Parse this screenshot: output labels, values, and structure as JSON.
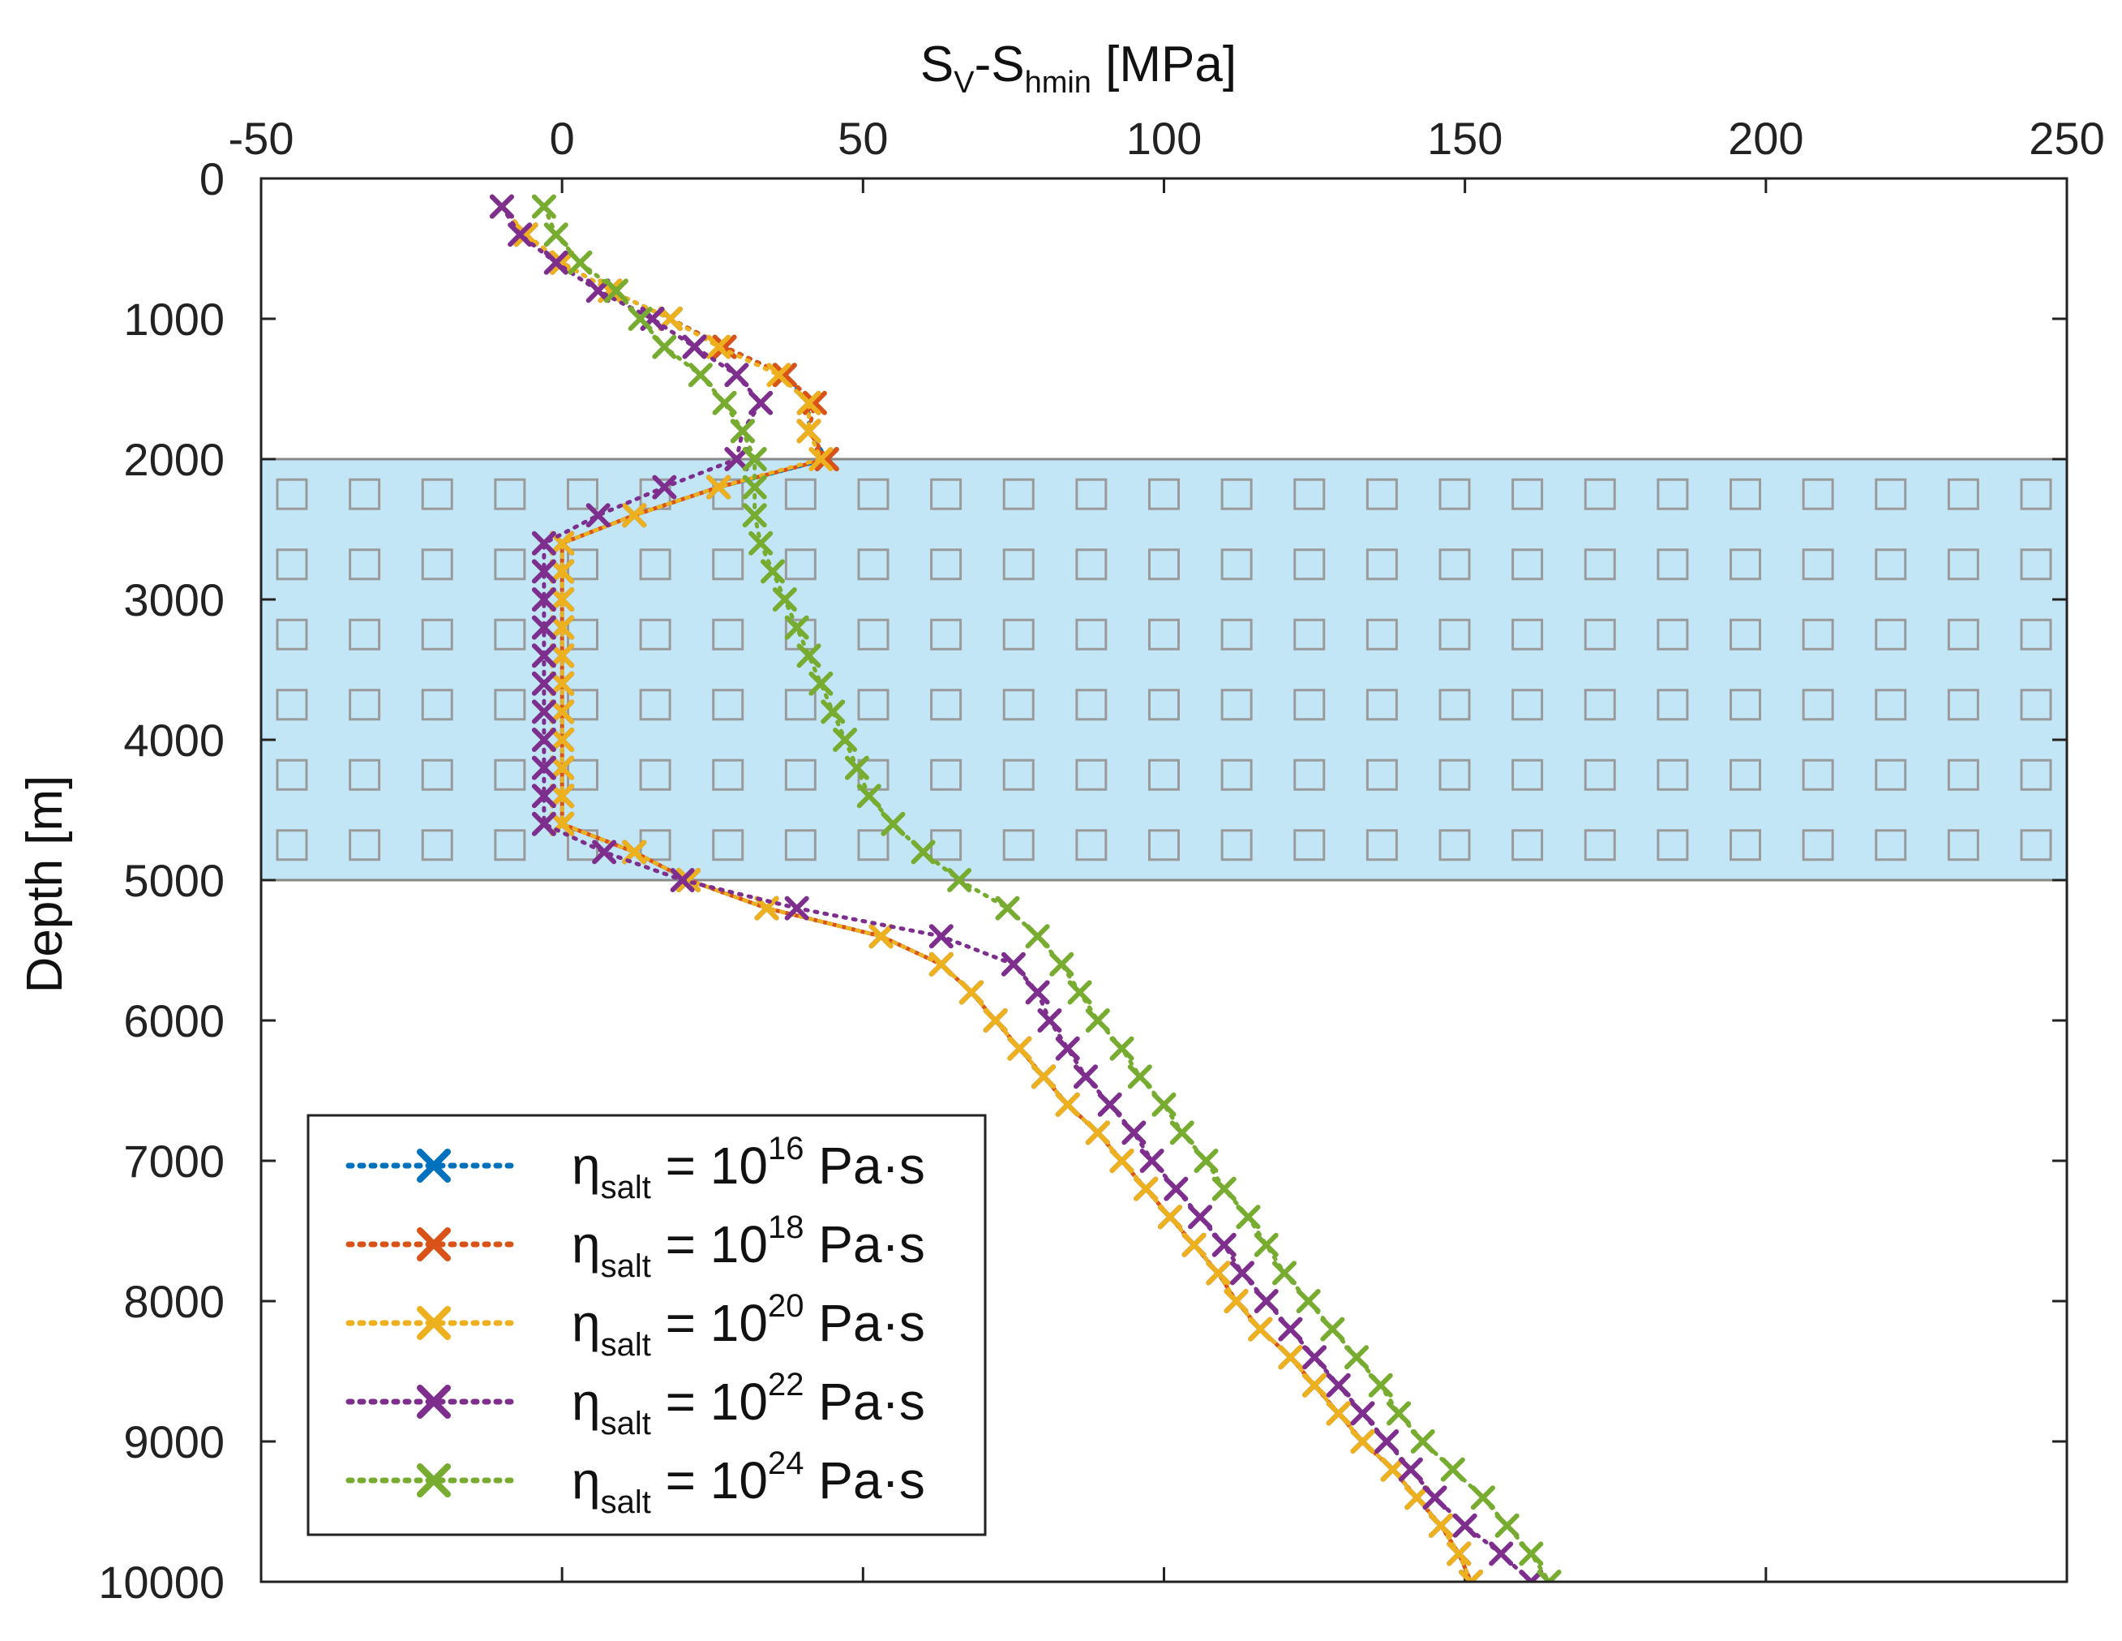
{
  "chart_data": {
    "type": "line",
    "xlabel": "S_V-S_hmin [MPa]",
    "xlabel_parts": {
      "main1": "S",
      "sub1": "V",
      "main2": "-S",
      "sub2": "hmin",
      "unit": " [MPa]"
    },
    "ylabel": "Depth [m]",
    "xlim": [
      -50,
      250
    ],
    "ylim": [
      0,
      10000
    ],
    "x_ticks": [
      "-50",
      "0",
      "50",
      "100",
      "150",
      "200",
      "250"
    ],
    "x_tick_values": [
      -50,
      0,
      50,
      100,
      150,
      200,
      250
    ],
    "y_ticks": [
      "0",
      "1000",
      "2000",
      "3000",
      "4000",
      "5000",
      "6000",
      "7000",
      "8000",
      "9000",
      "10000"
    ],
    "y_tick_values": [
      0,
      1000,
      2000,
      3000,
      4000,
      5000,
      6000,
      7000,
      8000,
      9000,
      10000
    ],
    "shaded_region": {
      "label": "salt layer",
      "y_from": 2000,
      "y_to": 5000,
      "color": "#c3e6f7",
      "marker_color": "#9a9a9a"
    },
    "legend_placement": "bottom-left",
    "series": [
      {
        "name": "η_salt = 10^16 Pa·s",
        "eta_symbol": "η",
        "eta_sub": "salt",
        "eq": " = 10",
        "exp": "16",
        "unit": " Pa·s",
        "color": "#0072bd",
        "depth": [
          200,
          400,
          600,
          800,
          1000,
          1200,
          1400,
          1600,
          1800,
          2000,
          2200,
          2400,
          2600,
          2800,
          3000,
          3200,
          3400,
          3600,
          3800,
          4000,
          4200,
          4400,
          4600,
          4800,
          5000,
          5200,
          5400,
          5600,
          5800,
          6000,
          6200,
          6400,
          6600,
          6800,
          7000,
          7200,
          7400,
          7600,
          7800,
          8000,
          8200,
          8400,
          8600,
          8800,
          9000,
          9200,
          9400,
          9600,
          9800,
          10000
        ],
        "values": [
          -10,
          -6,
          0,
          8,
          18,
          27,
          37,
          41,
          41,
          44,
          26,
          12,
          0,
          0,
          0,
          0,
          0,
          0,
          0,
          0,
          0,
          0,
          0,
          12,
          21,
          34,
          53,
          63,
          68,
          72,
          76,
          80,
          84,
          89,
          93,
          97,
          101,
          105,
          109,
          112,
          116,
          121,
          125,
          129,
          133,
          138,
          142,
          146,
          149,
          151
        ]
      },
      {
        "name": "η_salt = 10^18 Pa·s",
        "eta_symbol": "η",
        "eta_sub": "salt",
        "eq": " = 10",
        "exp": "18",
        "unit": " Pa·s",
        "color": "#d95319",
        "depth": [
          200,
          400,
          600,
          800,
          1000,
          1200,
          1400,
          1600,
          1800,
          2000,
          2200,
          2400,
          2600,
          2800,
          3000,
          3200,
          3400,
          3600,
          3800,
          4000,
          4200,
          4400,
          4600,
          4800,
          5000,
          5200,
          5400,
          5600,
          5800,
          6000,
          6200,
          6400,
          6600,
          6800,
          7000,
          7200,
          7400,
          7600,
          7800,
          8000,
          8200,
          8400,
          8600,
          8800,
          9000,
          9200,
          9400,
          9600,
          9800,
          10000
        ],
        "values": [
          -10,
          -6,
          0,
          8,
          18,
          27,
          37,
          42,
          41,
          44,
          26,
          12,
          0,
          0,
          0,
          0,
          0,
          0,
          0,
          0,
          0,
          0,
          0,
          12,
          21,
          34,
          53,
          63,
          68,
          72,
          76,
          80,
          84,
          89,
          93,
          97,
          101,
          105,
          109,
          112,
          116,
          121,
          125,
          129,
          133,
          138,
          142,
          146,
          149,
          151
        ]
      },
      {
        "name": "η_salt = 10^20 Pa·s",
        "eta_symbol": "η",
        "eta_sub": "salt",
        "eq": " = 10",
        "exp": "20",
        "unit": " Pa·s",
        "color": "#edb120",
        "depth": [
          200,
          400,
          600,
          800,
          1000,
          1200,
          1400,
          1600,
          1800,
          2000,
          2200,
          2400,
          2600,
          2800,
          3000,
          3200,
          3400,
          3600,
          3800,
          4000,
          4200,
          4400,
          4600,
          4800,
          5000,
          5200,
          5400,
          5600,
          5800,
          6000,
          6200,
          6400,
          6600,
          6800,
          7000,
          7200,
          7400,
          7600,
          7800,
          8000,
          8200,
          8400,
          8600,
          8800,
          9000,
          9200,
          9400,
          9600,
          9800,
          10000
        ],
        "values": [
          -10,
          -6,
          0,
          8,
          18,
          26,
          36,
          41,
          41,
          43,
          26,
          12,
          0,
          0,
          0,
          0,
          0,
          0,
          0,
          0,
          0,
          0,
          0,
          12,
          21,
          34,
          53,
          63,
          68,
          72,
          76,
          80,
          84,
          89,
          93,
          97,
          101,
          105,
          109,
          112,
          116,
          121,
          125,
          129,
          133,
          138,
          142,
          146,
          149,
          151
        ]
      },
      {
        "name": "η_salt = 10^22 Pa·s",
        "eta_symbol": "η",
        "eta_sub": "salt",
        "eq": " = 10",
        "exp": "22",
        "unit": " Pa·s",
        "color": "#7e2f8e",
        "depth": [
          200,
          400,
          600,
          800,
          1000,
          1200,
          1400,
          1600,
          1800,
          2000,
          2200,
          2400,
          2600,
          2800,
          3000,
          3200,
          3400,
          3600,
          3800,
          4000,
          4200,
          4400,
          4600,
          4800,
          5000,
          5200,
          5400,
          5600,
          5800,
          6000,
          6200,
          6400,
          6600,
          6800,
          7000,
          7200,
          7400,
          7600,
          7800,
          8000,
          8200,
          8400,
          8600,
          8800,
          9000,
          9200,
          9400,
          9600,
          9800,
          10000
        ],
        "values": [
          -10,
          -7,
          -1,
          6,
          15,
          22,
          29,
          33,
          30,
          29,
          17,
          6,
          -3,
          -3,
          -3,
          -3,
          -3,
          -3,
          -3,
          -3,
          -3,
          -3,
          -3,
          7,
          20,
          39,
          63,
          75,
          79,
          81,
          84,
          87,
          91,
          95,
          98,
          102,
          106,
          110,
          113,
          117,
          121,
          125,
          129,
          133,
          137,
          141,
          145,
          150,
          156,
          161
        ]
      },
      {
        "name": "η_salt = 10^24 Pa·s",
        "eta_symbol": "η",
        "eta_sub": "salt",
        "eq": " = 10",
        "exp": "24",
        "unit": " Pa·s",
        "color": "#77ac30",
        "depth": [
          200,
          400,
          600,
          800,
          1000,
          1200,
          1400,
          1600,
          1800,
          2000,
          2200,
          2400,
          2600,
          2800,
          3000,
          3200,
          3400,
          3600,
          3800,
          4000,
          4200,
          4400,
          4600,
          4800,
          5000,
          5200,
          5400,
          5600,
          5800,
          6000,
          6200,
          6400,
          6600,
          6800,
          7000,
          7200,
          7400,
          7600,
          7800,
          8000,
          8200,
          8400,
          8600,
          8800,
          9000,
          9200,
          9400,
          9600,
          9800,
          10000
        ],
        "values": [
          -3,
          -1,
          3,
          9,
          13,
          17,
          23,
          27,
          30,
          32,
          32,
          32,
          33,
          35,
          37,
          39,
          41,
          43,
          45,
          47,
          49,
          51,
          55,
          60,
          66,
          74,
          79,
          83,
          86,
          89,
          93,
          96,
          100,
          103,
          107,
          110,
          114,
          117,
          120,
          124,
          128,
          132,
          136,
          139,
          143,
          148,
          153,
          157,
          161,
          164
        ]
      }
    ]
  }
}
